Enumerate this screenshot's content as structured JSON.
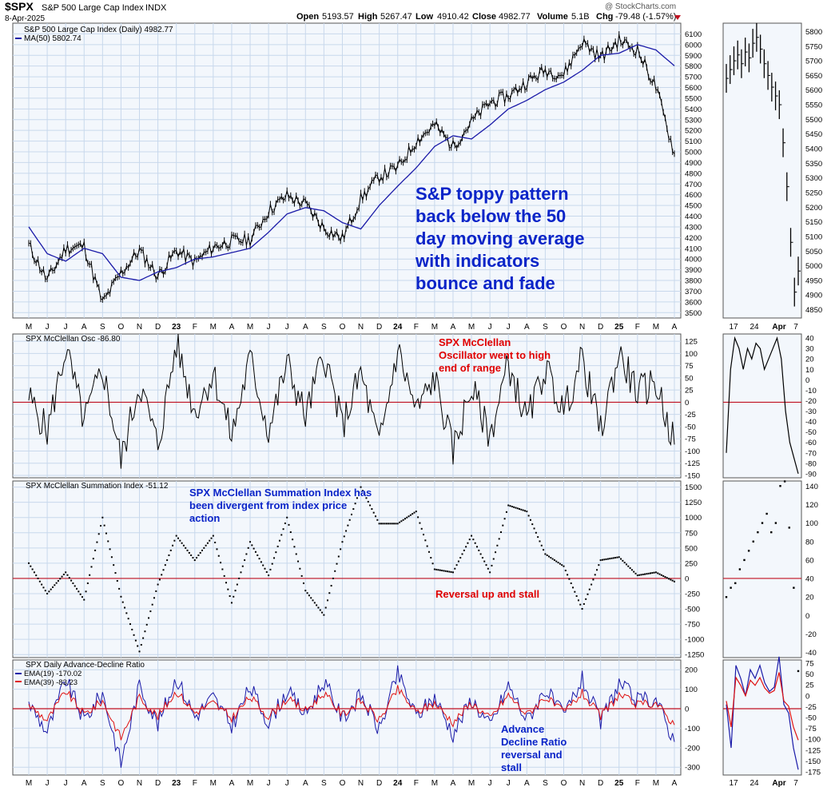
{
  "header": {
    "symbol": "$SPX",
    "name": "S&P 500 Large Cap Index",
    "exchange": "INDX",
    "date": "8-Apr-2025",
    "watermark": "@ StockCharts.com",
    "ohlc": {
      "open_label": "Open",
      "open": "5193.57",
      "high_label": "High",
      "high": "5267.47",
      "low_label": "Low",
      "low": "4910.42",
      "close_label": "Close",
      "close": "4982.77",
      "volume_label": "Volume",
      "volume": "5.1B",
      "chg_label": "Chg",
      "chg": "-79.48 (-1.57%)"
    }
  },
  "colors": {
    "price": "#000000",
    "ma": "#1a1aa8",
    "osc": "#000000",
    "zero_line": "#c01020",
    "ema19": "#1a1aa8",
    "ema39": "#e01010",
    "annotation_blue": "#0a24c8",
    "annotation_red": "#e00000",
    "grid": "#c8d8ec",
    "panel_bg": "#f3f7fc"
  },
  "time_axis": {
    "labels": [
      "M",
      "J",
      "J",
      "A",
      "S",
      "O",
      "N",
      "D",
      "23",
      "F",
      "M",
      "A",
      "M",
      "J",
      "J",
      "A",
      "S",
      "O",
      "N",
      "D",
      "24",
      "F",
      "M",
      "A",
      "M",
      "J",
      "J",
      "A",
      "S",
      "O",
      "N",
      "D",
      "25",
      "F",
      "M",
      "A"
    ],
    "bold_labels": [
      "23",
      "24",
      "25"
    ],
    "daily_labels": [
      "17",
      "24",
      "Apr",
      "7"
    ]
  },
  "chart_data": [
    {
      "type": "line",
      "title": "S&P 500 Large Cap Index (Daily) 4982.77",
      "series": [
        {
          "name": "S&P 500 Large Cap Index (Daily) 4982.77",
          "note": "approx monthly closes May-2022..Apr-2025",
          "values": [
            4130,
            3800,
            4100,
            4120,
            3590,
            3870,
            4080,
            3840,
            4080,
            3970,
            4110,
            4170,
            4180,
            4450,
            4590,
            4510,
            4290,
            4190,
            4560,
            4770,
            4850,
            5100,
            5250,
            5050,
            5280,
            5460,
            5520,
            5650,
            5760,
            5720,
            6030,
            5880,
            6040,
            5950,
            5600,
            4982
          ]
        },
        {
          "name": "MA(50) 5802.74",
          "values": [
            4300,
            4050,
            3980,
            4100,
            4050,
            3830,
            3800,
            3880,
            3920,
            4000,
            4020,
            4060,
            4100,
            4250,
            4420,
            4480,
            4450,
            4340,
            4280,
            4500,
            4680,
            4850,
            5050,
            5150,
            5120,
            5250,
            5400,
            5480,
            5580,
            5650,
            5760,
            5900,
            5920,
            6000,
            5950,
            5802
          ]
        }
      ],
      "ylim": [
        3450,
        6200
      ],
      "yticks": [
        3500,
        3600,
        3700,
        3800,
        3900,
        4000,
        4100,
        4200,
        4300,
        4400,
        4500,
        4600,
        4700,
        4800,
        4900,
        5000,
        5100,
        5200,
        5300,
        5400,
        5500,
        5600,
        5700,
        5800,
        5900,
        6000,
        6100
      ],
      "annotation": [
        "S&P toppy pattern",
        "back below the 50",
        "day moving average",
        "with indicators",
        "bounce and fade"
      ]
    },
    {
      "type": "line",
      "title": "SPX McClellan Osc -86.80",
      "series": [
        {
          "name": "SPX McClellan Osc -86.80",
          "values": [
            10,
            -60,
            110,
            -40,
            70,
            -120,
            40,
            -90,
            120,
            -20,
            60,
            -70,
            90,
            -60,
            80,
            -30,
            100,
            -50,
            60,
            -90,
            110,
            -20,
            50,
            -100,
            30,
            -70,
            80,
            -40,
            70,
            -20,
            90,
            -60,
            100,
            20,
            40,
            -86.8
          ]
        }
      ],
      "ylim": [
        -155,
        140
      ],
      "yticks": [
        -150,
        -125,
        -100,
        -75,
        -50,
        -25,
        0,
        25,
        50,
        75,
        100,
        125
      ],
      "annotation": [
        "SPX McClellan",
        "Oscillator went to high",
        "end of range"
      ]
    },
    {
      "type": "scatter",
      "title": "SPX McClellan Summation Index -51.12",
      "series": [
        {
          "name": "SPX McClellan Summation Index -51.12",
          "values": [
            250,
            -250,
            100,
            -350,
            1000,
            -300,
            -1200,
            -100,
            700,
            300,
            700,
            -400,
            600,
            50,
            1000,
            -200,
            -600,
            600,
            1500,
            900,
            900,
            1100,
            150,
            100,
            700,
            100,
            1200,
            1100,
            400,
            200,
            -500,
            300,
            350,
            50,
            100,
            -51.12
          ]
        }
      ],
      "ylim": [
        -1300,
        1600
      ],
      "yticks": [
        -1250,
        -1000,
        -750,
        -500,
        -250,
        0,
        250,
        500,
        750,
        1000,
        1250,
        1500
      ],
      "annotation": [
        "SPX McClellan Summation Index has",
        "been divergent from index price",
        "action"
      ],
      "annotation2": "Reversal up and stall"
    },
    {
      "type": "line",
      "title": "SPX Daily Advance-Decline Ratio",
      "series": [
        {
          "name": "EMA(19) -170.02",
          "values": [
            30,
            -120,
            150,
            -60,
            80,
            -280,
            120,
            -80,
            160,
            -40,
            60,
            -90,
            110,
            -70,
            90,
            -30,
            140,
            -50,
            70,
            -110,
            180,
            -40,
            60,
            -130,
            50,
            -90,
            120,
            -60,
            100,
            -40,
            150,
            -70,
            130,
            40,
            50,
            -170.02
          ]
        },
        {
          "name": "EMA(39) -83.23",
          "values": [
            20,
            -60,
            90,
            -30,
            40,
            -150,
            60,
            -40,
            90,
            -20,
            30,
            -50,
            60,
            -40,
            50,
            -10,
            80,
            -30,
            40,
            -60,
            100,
            -20,
            30,
            -70,
            30,
            -50,
            70,
            -30,
            60,
            -20,
            80,
            -40,
            70,
            20,
            30,
            -83.23
          ]
        }
      ],
      "ylim": [
        -340,
        250
      ],
      "yticks": [
        -300,
        -200,
        -100,
        0,
        100,
        200
      ],
      "annotation": [
        "Advance",
        "Decline Ratio",
        "reversal and",
        "stall"
      ]
    }
  ],
  "right_panel": {
    "price_ticks": [
      4850,
      4900,
      4950,
      5000,
      5050,
      5100,
      5150,
      5200,
      5250,
      5300,
      5350,
      5400,
      5450,
      5500,
      5550,
      5600,
      5650,
      5700,
      5750,
      5800
    ],
    "osc_ticks": [
      -90,
      -80,
      -70,
      -60,
      -50,
      -40,
      -30,
      -20,
      -10,
      0,
      10,
      20,
      30,
      40
    ],
    "sum_ticks": [
      -40,
      -20,
      0,
      20,
      40,
      60,
      80,
      100,
      120,
      140
    ],
    "ad_ticks": [
      -175,
      -150,
      -125,
      -100,
      -75,
      -50,
      -25,
      0,
      25,
      50,
      75
    ],
    "daily_close": [
      5640,
      5670,
      5700,
      5720,
      5690,
      5730,
      5710,
      5760,
      5780,
      5740,
      5690,
      5650,
      5610,
      5580,
      5550,
      5420,
      5270,
      5080,
      4910,
      4982
    ],
    "daily_osc": [
      -70,
      10,
      40,
      30,
      10,
      30,
      20,
      35,
      30,
      10,
      20,
      30,
      40,
      20,
      -30,
      -60,
      -75,
      -90
    ],
    "daily_sum": [
      20,
      30,
      35,
      50,
      60,
      70,
      80,
      90,
      100,
      110,
      90,
      100,
      140,
      145,
      95,
      30,
      -60
    ],
    "daily_ad": [
      -20,
      -120,
      70,
      40,
      0,
      60,
      40,
      70,
      30,
      10,
      20,
      90,
      -20,
      -40,
      -120,
      -170
    ]
  }
}
